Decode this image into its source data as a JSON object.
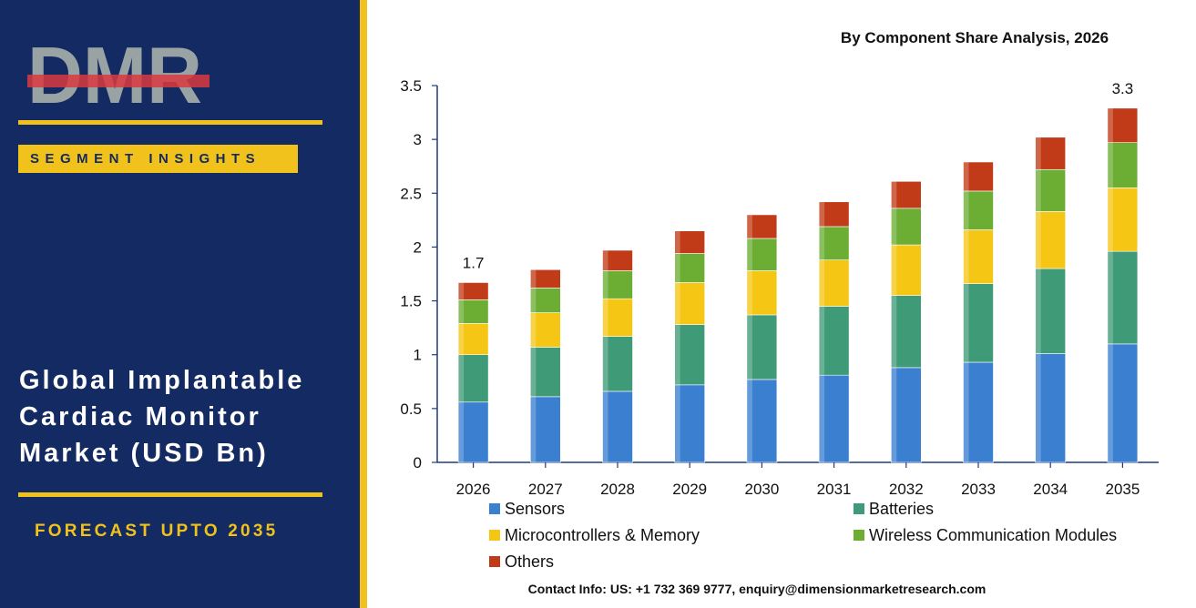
{
  "sidebar": {
    "logo_text": "DMR",
    "badge": "SEGMENT INSIGHTS",
    "title_lines": [
      "Global Implantable",
      "Cardiac Monitor",
      "Market (USD Bn)"
    ],
    "forecast": "FORECAST UPTO 2035"
  },
  "colors": {
    "sidebar_bg": "#132a62",
    "accent_gold": "#f1c21b",
    "logo_red": "#d93a3f",
    "logo_gray": "#9aa3a3"
  },
  "footer": {
    "contact": "Contact Info: US: +1 732 369 9777, enquiry@dimensionmarketresearch.com"
  },
  "chart_data": {
    "type": "bar",
    "stacked": true,
    "title": "By Component Share Analysis, 2026",
    "xlabel": "",
    "ylabel": "",
    "categories": [
      "2026",
      "2027",
      "2028",
      "2029",
      "2030",
      "2031",
      "2032",
      "2033",
      "2034",
      "2035"
    ],
    "ylim": [
      0,
      3.5
    ],
    "yticks": [
      "0",
      "0.5",
      "1",
      "1.5",
      "2",
      "2.5",
      "3",
      "3.5"
    ],
    "grid": false,
    "legend_position": "bottom",
    "series": [
      {
        "name": "Sensors",
        "color": "#3a7fd0",
        "values": [
          0.56,
          0.61,
          0.66,
          0.72,
          0.77,
          0.81,
          0.88,
          0.93,
          1.01,
          1.1
        ]
      },
      {
        "name": "Batteries",
        "color": "#3f9a78",
        "values": [
          0.44,
          0.46,
          0.51,
          0.56,
          0.6,
          0.64,
          0.67,
          0.73,
          0.79,
          0.86
        ]
      },
      {
        "name": "Microcontrollers & Memory",
        "color": "#f6c615",
        "values": [
          0.29,
          0.32,
          0.35,
          0.39,
          0.41,
          0.43,
          0.47,
          0.5,
          0.53,
          0.59
        ]
      },
      {
        "name": "Wireless Communication Modules",
        "color": "#6cad34",
        "values": [
          0.22,
          0.23,
          0.26,
          0.27,
          0.3,
          0.31,
          0.34,
          0.36,
          0.39,
          0.42
        ]
      },
      {
        "name": "Others",
        "color": "#c23b18",
        "values": [
          0.16,
          0.17,
          0.19,
          0.21,
          0.22,
          0.23,
          0.25,
          0.27,
          0.3,
          0.32
        ]
      }
    ],
    "annotations": [
      {
        "category": "2026",
        "text": "1.7"
      },
      {
        "category": "2035",
        "text": "3.3"
      }
    ]
  }
}
